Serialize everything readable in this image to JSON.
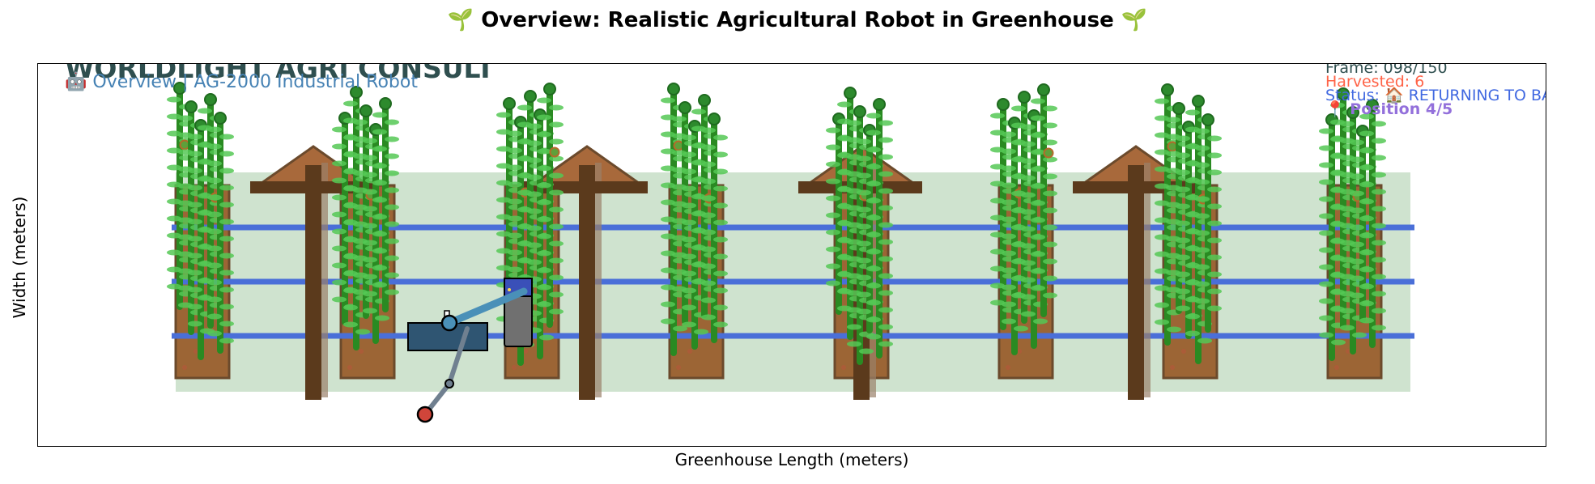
{
  "figure": {
    "title": "🌱 Overview: Realistic Agricultural Robot in Greenhouse 🌱",
    "xlabel": "Greenhouse Length (meters)",
    "ylabel": "Width (meters)"
  },
  "overlay": {
    "company": "WORLDLIGHT AGRI CONSULT",
    "subtitle": "🤖 Overview | AG-2000 Industrial Robot",
    "frame": "Frame: 098/150",
    "harvested": "Harvested: 6",
    "status": "Status: 🏠 RETURNING TO BASE",
    "position": "📍 Position 4/5"
  },
  "scene": {
    "planter_count": 8,
    "support_post_count": 4,
    "irrigation_line_count": 3,
    "robot_status": "RETURNING TO BASE"
  },
  "colors": {
    "ground": "#cfe3cf",
    "soil": "#9c6535",
    "soil_border": "#6b4a2c",
    "wood": "#5b3a1c",
    "irrigation": "#4a6fd8",
    "plant_stem": "#2a8a22",
    "plant_leaf": "#55c855",
    "plant_head": "#2d8a2d",
    "robot_base": "#2f5572",
    "robot_arm_upper": "#4a90b8",
    "robot_arm_lower": "#708090",
    "gripper": "#d0453a",
    "station": "#707070",
    "station_frame": "#3a50b8"
  }
}
